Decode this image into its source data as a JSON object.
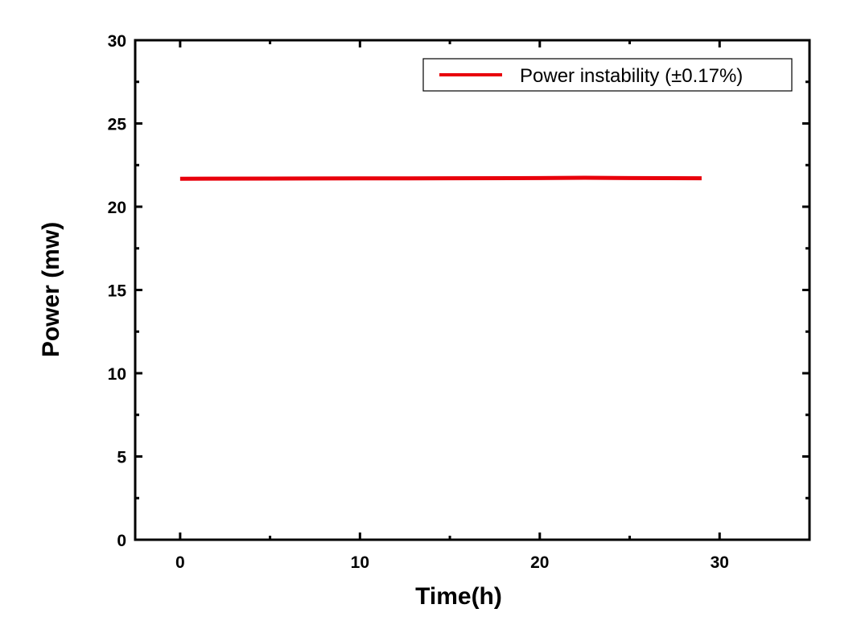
{
  "chart_data": {
    "type": "line",
    "title": "",
    "xlabel": "Time(h)",
    "ylabel": "Power (mw)",
    "xlim": [
      -2.5,
      35
    ],
    "ylim": [
      0,
      30
    ],
    "x_ticks": [
      0,
      10,
      20,
      30
    ],
    "y_ticks": [
      0,
      5,
      10,
      15,
      20,
      25,
      30
    ],
    "x_minor_step": 5,
    "y_minor_step": 2.5,
    "grid": false,
    "legend_position": "top-right",
    "series": [
      {
        "name": "Power instability (±0.17%)",
        "color": "#e8000b",
        "x": [
          0,
          5,
          10,
          15,
          20,
          22.5,
          25,
          29
        ],
        "y": [
          21.68,
          21.69,
          21.7,
          21.71,
          21.72,
          21.74,
          21.72,
          21.71
        ]
      }
    ]
  }
}
